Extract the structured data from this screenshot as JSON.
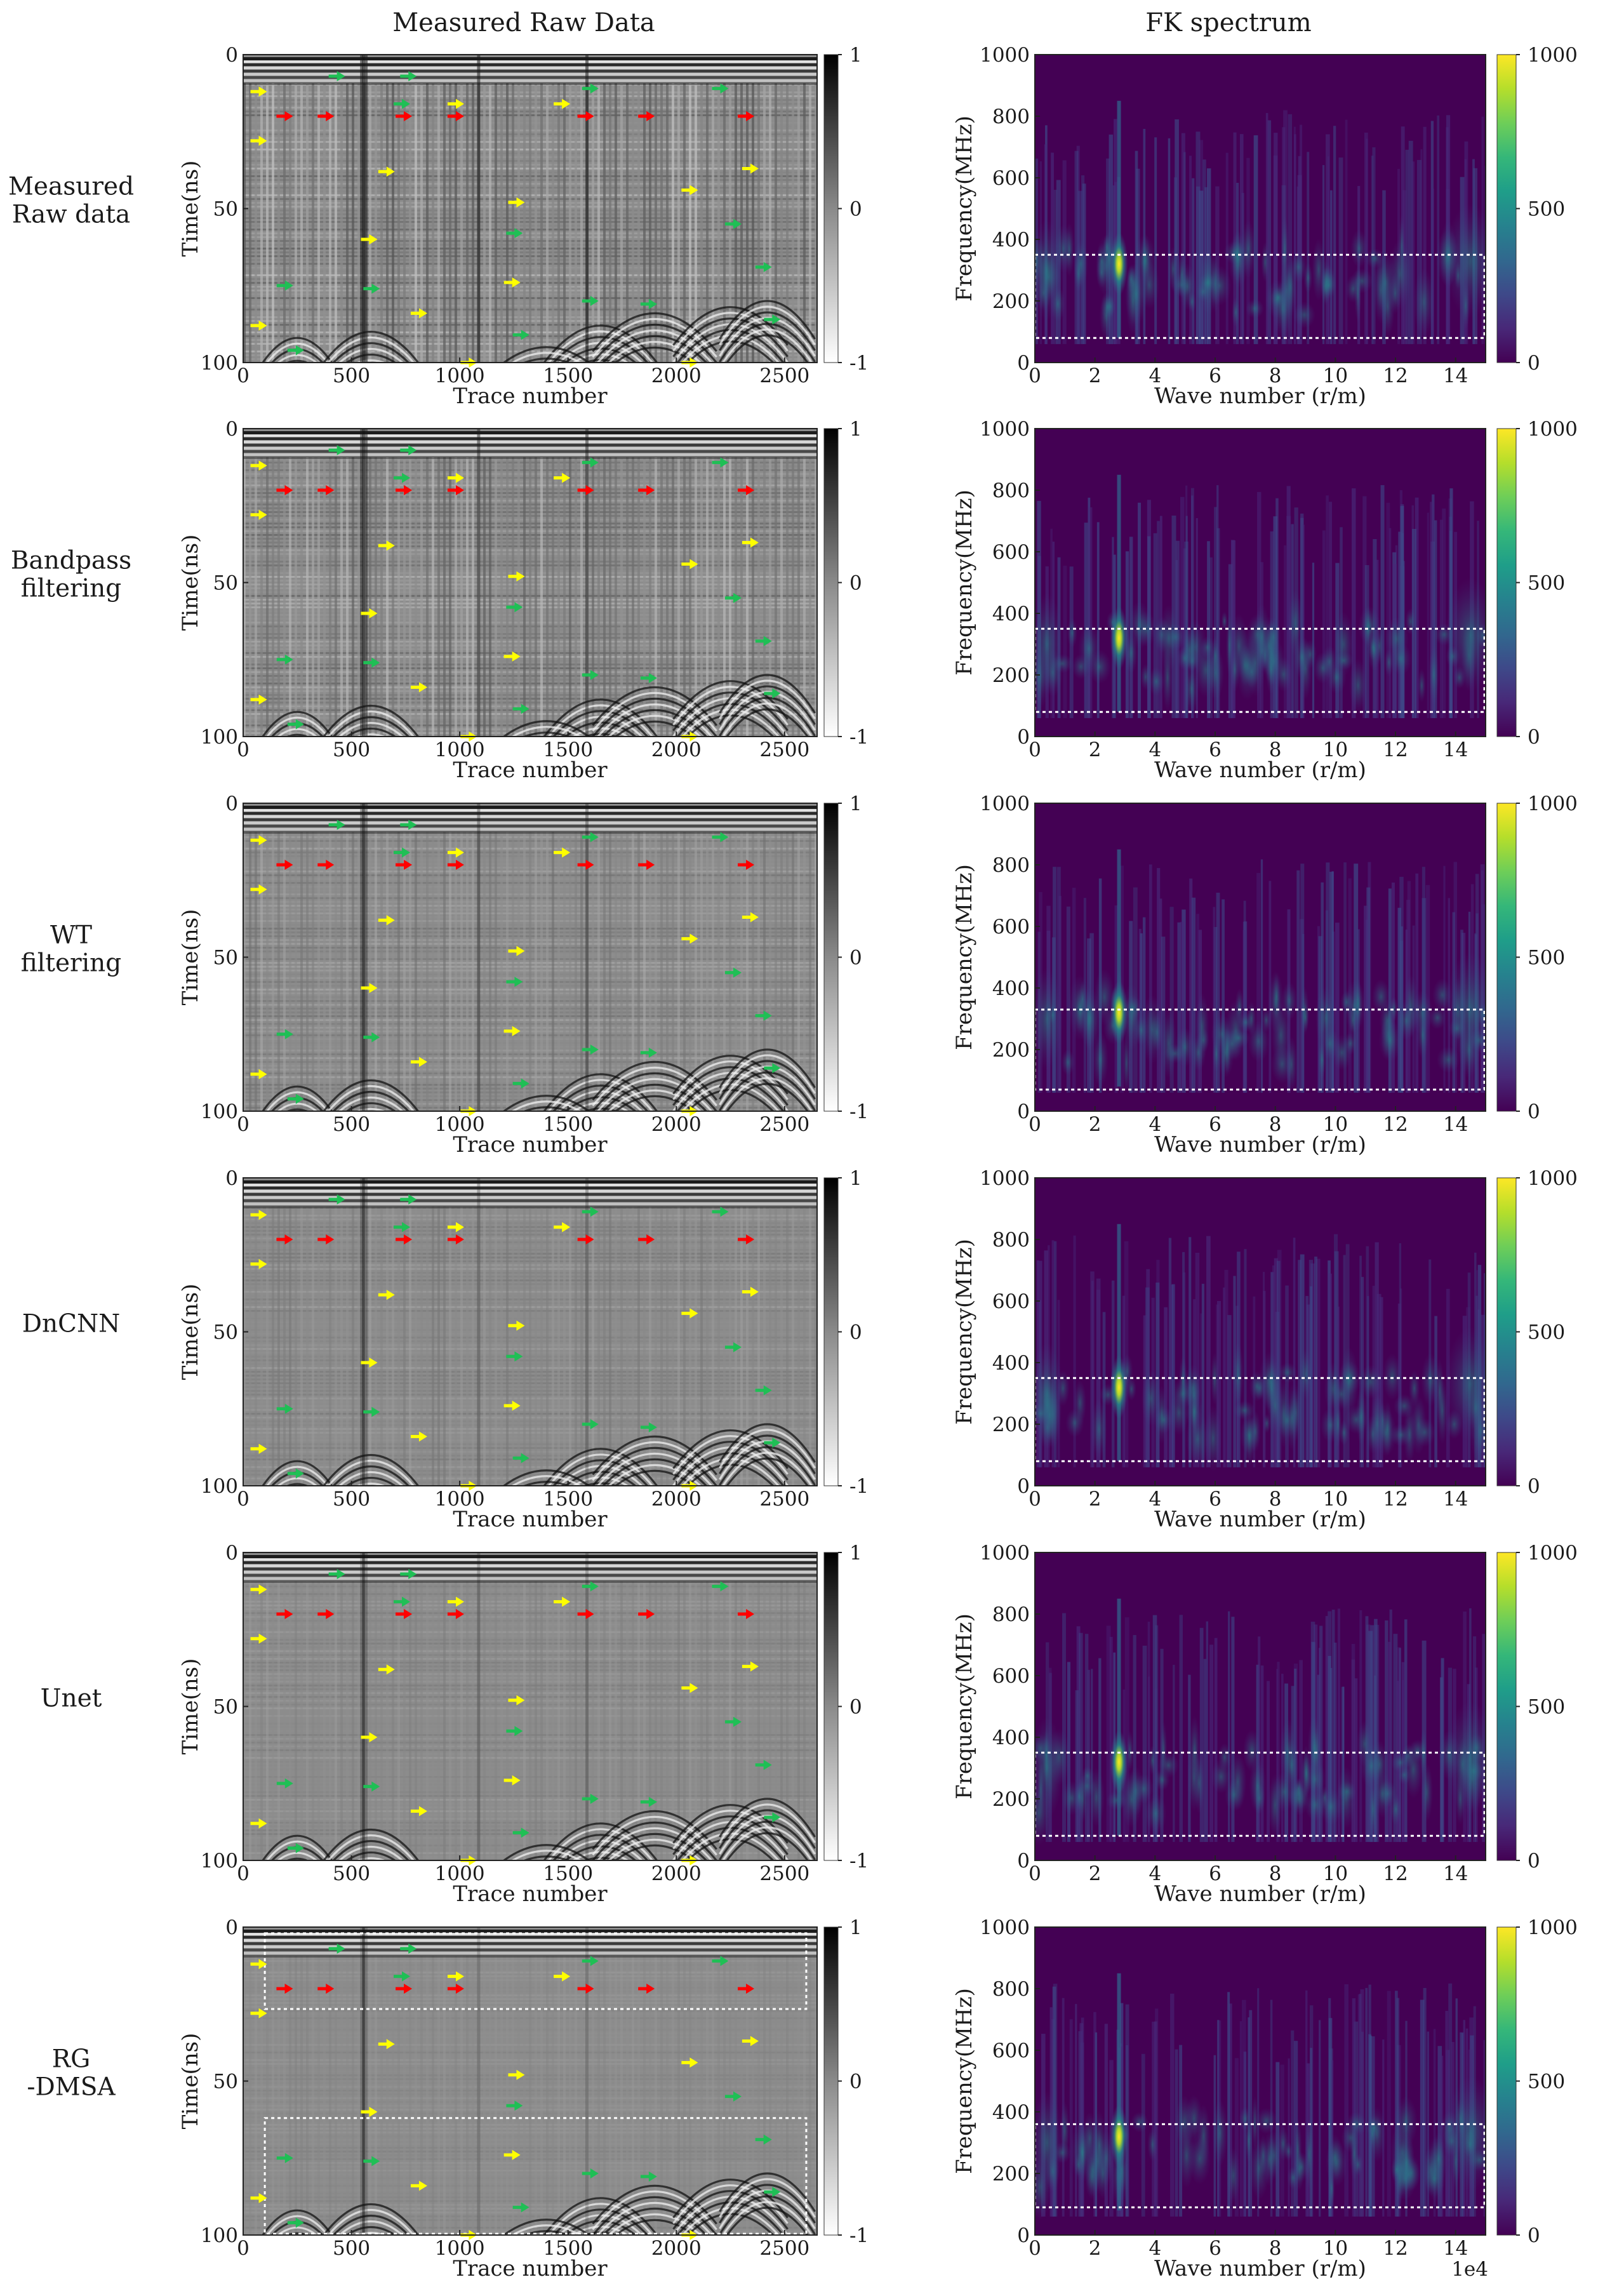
{
  "figure": {
    "column_titles": [
      "Measured Raw Data",
      "FK spectrum"
    ],
    "row_labels": [
      [
        "Measured",
        "Raw data"
      ],
      [
        "Bandpass",
        "filtering"
      ],
      [
        "WT",
        "filtering"
      ],
      [
        "DnCNN"
      ],
      [
        "Unet"
      ],
      [
        "RG",
        "-DMSA"
      ]
    ]
  },
  "colors": {
    "fk_viridis": [
      "#440154",
      "#482878",
      "#3e4989",
      "#31688e",
      "#26828e",
      "#1f9e89",
      "#35b779",
      "#6ece58",
      "#b5de2b",
      "#fde725"
    ],
    "arrow_yellow": "#ffff00",
    "arrow_red": "#ff0000",
    "arrow_green": "#1fbf55",
    "box_white": "#ffffff"
  },
  "chart_data": [
    {
      "type": "heatmap",
      "panel": "radargram",
      "method": "Measured Raw data",
      "xlabel": "Trace number",
      "ylabel": "Time(ns)",
      "xlim": [
        0,
        2650
      ],
      "ylim": [
        100,
        0
      ],
      "xticks": [
        "0",
        "500",
        "1000",
        "1500",
        "2000",
        "2500"
      ],
      "yticks": [
        "0",
        "50",
        "100"
      ],
      "colorbar": {
        "range": [
          -1,
          1
        ],
        "ticks": [
          "1",
          "0",
          "-1"
        ]
      },
      "highlight_boxes": []
    },
    {
      "type": "heatmap",
      "panel": "fk",
      "method": "Measured Raw data",
      "xlabel": "Wave number (r/m)",
      "ylabel": "Frequency(MHz)",
      "xlim": [
        0,
        15
      ],
      "ylim": [
        0,
        1000
      ],
      "xticks": [
        "0",
        "2",
        "4",
        "6",
        "8",
        "10",
        "12",
        "14"
      ],
      "yticks": [
        "0",
        "200",
        "400",
        "600",
        "800",
        "1000"
      ],
      "colorbar": {
        "range": [
          0,
          1000
        ],
        "ticks": [
          "1000",
          "500",
          "0"
        ]
      },
      "highlight_boxes": [
        {
          "x": [
            0,
            15
          ],
          "y": [
            80,
            350
          ]
        }
      ]
    },
    {
      "type": "heatmap",
      "panel": "radargram",
      "method": "Bandpass filtering",
      "xlabel": "Trace number",
      "ylabel": "Time(ns)",
      "xlim": [
        0,
        2650
      ],
      "ylim": [
        100,
        0
      ],
      "xticks": [
        "0",
        "500",
        "1000",
        "1500",
        "2000",
        "2500"
      ],
      "yticks": [
        "0",
        "50",
        "100"
      ],
      "colorbar": {
        "range": [
          -1,
          1
        ],
        "ticks": [
          "1",
          "0",
          "-1"
        ]
      },
      "highlight_boxes": []
    },
    {
      "type": "heatmap",
      "panel": "fk",
      "method": "Bandpass filtering",
      "xlabel": "Wave number (r/m)",
      "ylabel": "Frequency(MHz)",
      "xlim": [
        0,
        15
      ],
      "ylim": [
        0,
        1000
      ],
      "xticks": [
        "0",
        "2",
        "4",
        "6",
        "8",
        "10",
        "12",
        "14"
      ],
      "yticks": [
        "0",
        "200",
        "400",
        "600",
        "800",
        "1000"
      ],
      "colorbar": {
        "range": [
          0,
          1000
        ],
        "ticks": [
          "1000",
          "500",
          "0"
        ]
      },
      "highlight_boxes": [
        {
          "x": [
            0,
            15
          ],
          "y": [
            80,
            350
          ]
        }
      ]
    },
    {
      "type": "heatmap",
      "panel": "radargram",
      "method": "WT filtering",
      "xlabel": "Trace number",
      "ylabel": "Time(ns)",
      "xlim": [
        0,
        2650
      ],
      "ylim": [
        100,
        0
      ],
      "xticks": [
        "0",
        "500",
        "1000",
        "1500",
        "2000",
        "2500"
      ],
      "yticks": [
        "0",
        "50",
        "100"
      ],
      "colorbar": {
        "range": [
          -1,
          1
        ],
        "ticks": [
          "1",
          "0",
          "-1"
        ]
      },
      "highlight_boxes": []
    },
    {
      "type": "heatmap",
      "panel": "fk",
      "method": "WT filtering",
      "xlabel": "Wave number (r/m)",
      "ylabel": "Frequency(MHz)",
      "xlim": [
        0,
        15
      ],
      "ylim": [
        0,
        1000
      ],
      "xticks": [
        "0",
        "2",
        "4",
        "6",
        "8",
        "10",
        "12",
        "14"
      ],
      "yticks": [
        "0",
        "200",
        "400",
        "600",
        "800",
        "1000"
      ],
      "colorbar": {
        "range": [
          0,
          1000
        ],
        "ticks": [
          "1000",
          "500",
          "0"
        ]
      },
      "highlight_boxes": [
        {
          "x": [
            0,
            15
          ],
          "y": [
            70,
            330
          ]
        }
      ]
    },
    {
      "type": "heatmap",
      "panel": "radargram",
      "method": "DnCNN",
      "xlabel": "Trace number",
      "ylabel": "Time(ns)",
      "xlim": [
        0,
        2650
      ],
      "ylim": [
        100,
        0
      ],
      "xticks": [
        "0",
        "500",
        "1000",
        "1500",
        "2000",
        "2500"
      ],
      "yticks": [
        "0",
        "50",
        "100"
      ],
      "colorbar": {
        "range": [
          -1,
          1
        ],
        "ticks": [
          "1",
          "0",
          "-1"
        ]
      },
      "highlight_boxes": []
    },
    {
      "type": "heatmap",
      "panel": "fk",
      "method": "DnCNN",
      "xlabel": "Wave number (r/m)",
      "ylabel": "Frequency(MHz)",
      "xlim": [
        0,
        15
      ],
      "ylim": [
        0,
        1000
      ],
      "xticks": [
        "0",
        "2",
        "4",
        "6",
        "8",
        "10",
        "12",
        "14"
      ],
      "yticks": [
        "0",
        "200",
        "400",
        "600",
        "800",
        "1000"
      ],
      "colorbar": {
        "range": [
          0,
          1000
        ],
        "ticks": [
          "1000",
          "500",
          "0"
        ]
      },
      "highlight_boxes": [
        {
          "x": [
            0,
            15
          ],
          "y": [
            80,
            350
          ]
        }
      ]
    },
    {
      "type": "heatmap",
      "panel": "radargram",
      "method": "Unet",
      "xlabel": "Trace number",
      "ylabel": "Time(ns)",
      "xlim": [
        0,
        2650
      ],
      "ylim": [
        100,
        0
      ],
      "xticks": [
        "0",
        "500",
        "1000",
        "1500",
        "2000",
        "2500"
      ],
      "yticks": [
        "0",
        "50",
        "100"
      ],
      "colorbar": {
        "range": [
          -1,
          1
        ],
        "ticks": [
          "1",
          "0",
          "-1"
        ]
      },
      "highlight_boxes": []
    },
    {
      "type": "heatmap",
      "panel": "fk",
      "method": "Unet",
      "xlabel": "Wave number (r/m)",
      "ylabel": "Frequency(MHz)",
      "xlim": [
        0,
        15
      ],
      "ylim": [
        0,
        1000
      ],
      "xticks": [
        "0",
        "2",
        "4",
        "6",
        "8",
        "10",
        "12",
        "14"
      ],
      "yticks": [
        "0",
        "200",
        "400",
        "600",
        "800",
        "1000"
      ],
      "colorbar": {
        "range": [
          0,
          1000
        ],
        "ticks": [
          "1000",
          "500",
          "0"
        ]
      },
      "highlight_boxes": [
        {
          "x": [
            0,
            15
          ],
          "y": [
            80,
            350
          ]
        }
      ]
    },
    {
      "type": "heatmap",
      "panel": "radargram",
      "method": "RG-DMSA",
      "xlabel": "Trace number",
      "ylabel": "Time(ns)",
      "xlim": [
        0,
        2650
      ],
      "ylim": [
        100,
        0
      ],
      "xticks": [
        "0",
        "500",
        "1000",
        "1500",
        "2000",
        "2500"
      ],
      "yticks": [
        "0",
        "50",
        "100"
      ],
      "colorbar": {
        "range": [
          -1,
          1
        ],
        "ticks": [
          "1",
          "0",
          "-1"
        ]
      },
      "highlight_boxes": [
        {
          "x": [
            100,
            2600
          ],
          "y": [
            2,
            27
          ]
        },
        {
          "x": [
            100,
            2600
          ],
          "y": [
            62,
            100
          ]
        }
      ]
    },
    {
      "type": "heatmap",
      "panel": "fk",
      "method": "RG-DMSA",
      "xlabel": "Wave number (r/m)",
      "ylabel": "Frequency(MHz)",
      "xlim": [
        0,
        15
      ],
      "ylim": [
        0,
        1000
      ],
      "xticks": [
        "0",
        "2",
        "4",
        "6",
        "8",
        "10",
        "12",
        "14"
      ],
      "yticks": [
        "0",
        "200",
        "400",
        "600",
        "800",
        "1000"
      ],
      "colorbar": {
        "range": [
          0,
          1000
        ],
        "ticks": [
          "1000",
          "500",
          "0"
        ]
      },
      "x_scale_label": "1e4",
      "highlight_boxes": [
        {
          "x": [
            0,
            15
          ],
          "y": [
            90,
            360
          ]
        }
      ]
    }
  ],
  "arrow_markers": {
    "yellow": [
      [
        110,
        12
      ],
      [
        110,
        28
      ],
      [
        700,
        38
      ],
      [
        620,
        60
      ],
      [
        1300,
        48
      ],
      [
        1280,
        74
      ],
      [
        850,
        84
      ],
      [
        110,
        88
      ],
      [
        1080,
        100
      ],
      [
        1020,
        16
      ],
      [
        1510,
        16
      ],
      [
        2100,
        44
      ],
      [
        2380,
        37
      ],
      [
        2100,
        100
      ]
    ],
    "red": [
      [
        230,
        20
      ],
      [
        420,
        20
      ],
      [
        780,
        20
      ],
      [
        1020,
        20
      ],
      [
        1620,
        20
      ],
      [
        1900,
        20
      ],
      [
        2360,
        20
      ]
    ],
    "green": [
      [
        430,
        7
      ],
      [
        760,
        7
      ],
      [
        730,
        16
      ],
      [
        1600,
        11
      ],
      [
        2200,
        11
      ],
      [
        1250,
        58
      ],
      [
        2260,
        55
      ],
      [
        190,
        75
      ],
      [
        590,
        76
      ],
      [
        2400,
        69
      ],
      [
        1600,
        80
      ],
      [
        1870,
        81
      ],
      [
        1280,
        91
      ],
      [
        2440,
        86
      ],
      [
        240,
        96
      ]
    ]
  }
}
